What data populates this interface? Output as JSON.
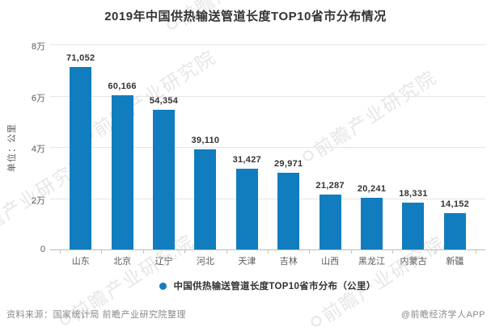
{
  "title": "2019年中国供热输送管道长度TOP10省市分布情况",
  "chart_data": {
    "type": "bar",
    "title": "2019年中国供热输送管道长度TOP10省市分布情况",
    "categories": [
      "山东",
      "北京",
      "辽宁",
      "河北",
      "天津",
      "吉林",
      "山西",
      "黑龙江",
      "内蒙古",
      "新疆"
    ],
    "values": [
      71052,
      60166,
      54354,
      39110,
      31427,
      29971,
      21287,
      20241,
      18331,
      14152
    ],
    "xlabel": "",
    "ylabel": "单位：公里",
    "ylim": [
      0,
      80000
    ],
    "ytick_labels": [
      "0",
      "2万",
      "4万",
      "6万",
      "8万"
    ],
    "grid": true,
    "legend_position": "bottom",
    "bar_color": "#117DBE"
  },
  "legend": {
    "label": "中国供热输送管道长度TOP10省市分布（公里）",
    "marker_color": "#117DBE"
  },
  "footer": {
    "source": "资料来源：国家统计局 前瞻产业研究院整理",
    "credit": "@前瞻经济学人APP"
  },
  "watermark": {
    "text": "前瞻产业研究院",
    "subtext": "·  ·  ·  ·  ·  ·  ·  ·  ·  ·"
  },
  "colors": {
    "bar": "#117DBE",
    "title_text": "#333333",
    "axis_text": "#595959",
    "grid_line": "#e5e5e5",
    "axis_line": "#bbbbbb",
    "footer_text": "#8a8a8a",
    "watermark": "#c6c6c6"
  }
}
